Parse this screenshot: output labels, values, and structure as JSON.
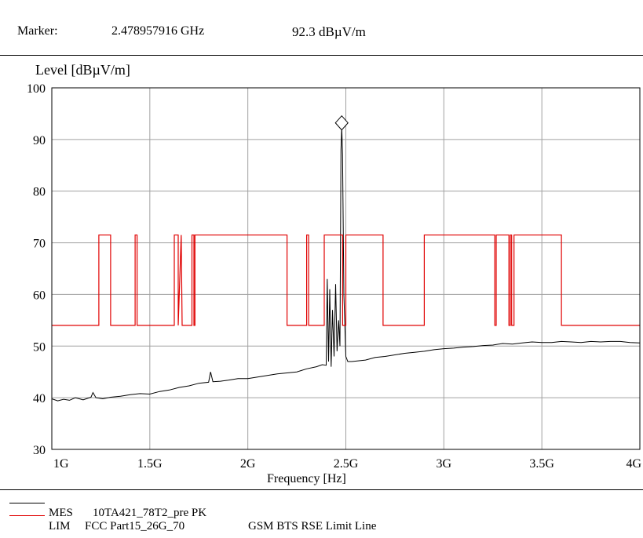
{
  "header": {
    "marker_label": "Marker:",
    "marker_freq": "2.478957916 GHz",
    "marker_level": "92.3 dBµV/m"
  },
  "legend": {
    "mes_tag": "MES",
    "mes_desc": "10TA421_78T2_pre PK",
    "lim_tag": "LIM",
    "lim_desc": "FCC Part15_26G_70",
    "lim_note": "GSM BTS RSE Limit Line"
  },
  "colors": {
    "measurement": "#000000",
    "limit": "#e00000",
    "grid": "#a0a0a0"
  },
  "chart_data": {
    "type": "line",
    "title": "",
    "xlabel": "Frequency [Hz]",
    "ylabel": "Level [dBµV/m]",
    "xlim": [
      1000000000,
      4000000000
    ],
    "ylim": [
      30,
      100
    ],
    "x_ticks": [
      1000000000,
      1500000000,
      2000000000,
      2500000000,
      3000000000,
      3500000000,
      4000000000
    ],
    "x_tick_labels": [
      "1G",
      "1.5G",
      "2G",
      "2.5G",
      "3G",
      "3.5G",
      "4G"
    ],
    "y_ticks": [
      30,
      40,
      50,
      60,
      70,
      80,
      90,
      100
    ],
    "y_tick_labels": [
      "30",
      "40",
      "50",
      "60",
      "70",
      "80",
      "90",
      "100"
    ],
    "grid": true,
    "marker": {
      "x": 2478957916,
      "y": 92.3,
      "symbol": "diamond"
    },
    "series": [
      {
        "name": "MES 10TA421_78T2_pre PK",
        "color": "#000000",
        "points": [
          [
            1000000000,
            39.8
          ],
          [
            1030000000,
            39.4
          ],
          [
            1060000000,
            39.7
          ],
          [
            1090000000,
            39.5
          ],
          [
            1120000000,
            40.0
          ],
          [
            1160000000,
            39.6
          ],
          [
            1200000000,
            40.1
          ],
          [
            1210000000,
            41.0
          ],
          [
            1225000000,
            40.0
          ],
          [
            1260000000,
            39.8
          ],
          [
            1300000000,
            40.1
          ],
          [
            1350000000,
            40.3
          ],
          [
            1400000000,
            40.6
          ],
          [
            1450000000,
            40.8
          ],
          [
            1500000000,
            40.7
          ],
          [
            1550000000,
            41.2
          ],
          [
            1600000000,
            41.5
          ],
          [
            1650000000,
            42.0
          ],
          [
            1700000000,
            42.3
          ],
          [
            1750000000,
            42.8
          ],
          [
            1800000000,
            43.0
          ],
          [
            1810000000,
            45.0
          ],
          [
            1822000000,
            43.1
          ],
          [
            1860000000,
            43.2
          ],
          [
            1900000000,
            43.4
          ],
          [
            1950000000,
            43.7
          ],
          [
            2000000000,
            43.7
          ],
          [
            2050000000,
            44.0
          ],
          [
            2100000000,
            44.3
          ],
          [
            2150000000,
            44.6
          ],
          [
            2200000000,
            44.8
          ],
          [
            2250000000,
            45.0
          ],
          [
            2300000000,
            45.6
          ],
          [
            2350000000,
            46.0
          ],
          [
            2380000000,
            46.4
          ],
          [
            2400000000,
            46.3
          ],
          [
            2405000000,
            63.0
          ],
          [
            2412000000,
            47.0
          ],
          [
            2418000000,
            61.0
          ],
          [
            2425000000,
            46.0
          ],
          [
            2432000000,
            57.0
          ],
          [
            2440000000,
            48.0
          ],
          [
            2448000000,
            62.0
          ],
          [
            2455000000,
            49.0
          ],
          [
            2463000000,
            55.0
          ],
          [
            2470000000,
            50.0
          ],
          [
            2475000000,
            88.0
          ],
          [
            2479000000,
            92.3
          ],
          [
            2483000000,
            87.0
          ],
          [
            2490000000,
            60.0
          ],
          [
            2500000000,
            48.0
          ],
          [
            2510000000,
            47.0
          ],
          [
            2530000000,
            47.0
          ],
          [
            2600000000,
            47.3
          ],
          [
            2650000000,
            47.8
          ],
          [
            2700000000,
            48.0
          ],
          [
            2750000000,
            48.3
          ],
          [
            2800000000,
            48.6
          ],
          [
            2850000000,
            48.8
          ],
          [
            2900000000,
            49.0
          ],
          [
            2950000000,
            49.3
          ],
          [
            3000000000,
            49.5
          ],
          [
            3050000000,
            49.6
          ],
          [
            3100000000,
            49.8
          ],
          [
            3150000000,
            49.9
          ],
          [
            3200000000,
            50.1
          ],
          [
            3250000000,
            50.2
          ],
          [
            3300000000,
            50.5
          ],
          [
            3350000000,
            50.4
          ],
          [
            3400000000,
            50.6
          ],
          [
            3450000000,
            50.8
          ],
          [
            3500000000,
            50.7
          ],
          [
            3550000000,
            50.7
          ],
          [
            3600000000,
            50.9
          ],
          [
            3650000000,
            50.8
          ],
          [
            3700000000,
            50.7
          ],
          [
            3750000000,
            50.9
          ],
          [
            3800000000,
            50.8
          ],
          [
            3850000000,
            50.9
          ],
          [
            3900000000,
            50.9
          ],
          [
            3950000000,
            50.7
          ],
          [
            4000000000,
            50.6
          ]
        ]
      },
      {
        "name": "LIM FCC Part15_26G_70",
        "color": "#e00000",
        "step": true,
        "points": [
          [
            1000000000,
            54.0
          ],
          [
            1240000000,
            54.0
          ],
          [
            1240000000,
            71.5
          ],
          [
            1300000000,
            71.5
          ],
          [
            1300000000,
            54.0
          ],
          [
            1425000000,
            54.0
          ],
          [
            1425000000,
            71.5
          ],
          [
            1435000000,
            71.5
          ],
          [
            1435000000,
            54.0
          ],
          [
            1625000000,
            54.0
          ],
          [
            1625000000,
            71.5
          ],
          [
            1645000000,
            71.5
          ],
          [
            1645000000,
            54.0
          ],
          [
            1660000000,
            71.5
          ],
          [
            1665000000,
            54.0
          ],
          [
            1715000000,
            54.0
          ],
          [
            1715000000,
            71.5
          ],
          [
            1725000000,
            71.5
          ],
          [
            1725000000,
            54.0
          ],
          [
            1730000000,
            54.0
          ],
          [
            1730000000,
            71.5
          ],
          [
            2200000000,
            71.5
          ],
          [
            2200000000,
            54.0
          ],
          [
            2300000000,
            54.0
          ],
          [
            2300000000,
            71.5
          ],
          [
            2310000000,
            71.5
          ],
          [
            2310000000,
            54.0
          ],
          [
            2390000000,
            54.0
          ],
          [
            2390000000,
            71.5
          ],
          [
            2483500000,
            71.5
          ],
          [
            2483500000,
            54.0
          ],
          [
            2500000000,
            54.0
          ],
          [
            2500000000,
            71.5
          ],
          [
            2690000000,
            71.5
          ],
          [
            2690000000,
            54.0
          ],
          [
            2900000000,
            54.0
          ],
          [
            2900000000,
            71.5
          ],
          [
            3260000000,
            71.5
          ],
          [
            3260000000,
            54.0
          ],
          [
            3267000000,
            54.0
          ],
          [
            3267000000,
            71.5
          ],
          [
            3332000000,
            71.5
          ],
          [
            3332000000,
            54.0
          ],
          [
            3339000000,
            54.0
          ],
          [
            3339000000,
            71.5
          ],
          [
            3345800000,
            71.5
          ],
          [
            3345800000,
            54.0
          ],
          [
            3358000000,
            54.0
          ],
          [
            3358000000,
            71.5
          ],
          [
            3600000000,
            71.5
          ],
          [
            3600000000,
            54.0
          ],
          [
            4000000000,
            54.0
          ]
        ]
      }
    ]
  }
}
